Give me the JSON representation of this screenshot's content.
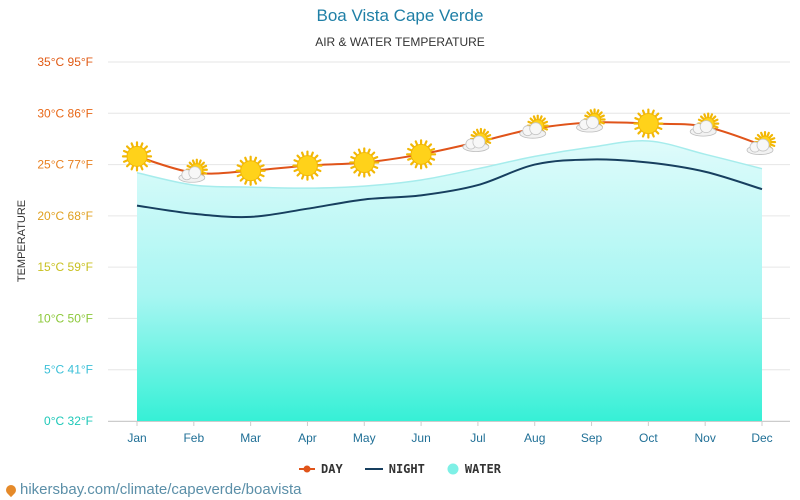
{
  "chart_data": {
    "type": "line",
    "title": "Boa Vista Cape Verde",
    "subtitle": "AIR & WATER TEMPERATURE",
    "ylabel": "TEMPERATURE",
    "xlabel": "",
    "categories": [
      "Jan",
      "Feb",
      "Mar",
      "Apr",
      "May",
      "Jun",
      "Jul",
      "Aug",
      "Sep",
      "Oct",
      "Nov",
      "Dec"
    ],
    "ylim": [
      0,
      35
    ],
    "y_ticks": [
      {
        "value": 0,
        "label": "0°C 32°F",
        "color": "#1ec8b8"
      },
      {
        "value": 5,
        "label": "5°C 41°F",
        "color": "#3cc0d8"
      },
      {
        "value": 10,
        "label": "10°C 50°F",
        "color": "#8cc83a"
      },
      {
        "value": 15,
        "label": "15°C 59°F",
        "color": "#c8c020"
      },
      {
        "value": 20,
        "label": "20°C 68°F",
        "color": "#e0a020"
      },
      {
        "value": 25,
        "label": "25°C 77°F",
        "color": "#e88020"
      },
      {
        "value": 30,
        "label": "30°C 86°F",
        "color": "#e86818"
      },
      {
        "value": 35,
        "label": "35°C 95°F",
        "color": "#e05a14"
      }
    ],
    "series": [
      {
        "name": "DAY",
        "type": "line",
        "color": "#e0541a",
        "values": [
          25.8,
          24.2,
          24.4,
          24.9,
          25.2,
          26.0,
          27.2,
          28.5,
          29.1,
          29.0,
          28.7,
          26.9
        ]
      },
      {
        "name": "NIGHT",
        "type": "line",
        "color": "#173f5f",
        "values": [
          21.0,
          20.2,
          19.9,
          20.7,
          21.6,
          22.0,
          23.0,
          25.0,
          25.5,
          25.2,
          24.3,
          22.6
        ]
      },
      {
        "name": "WATER",
        "type": "area",
        "color": "#7ef0e6",
        "values": [
          24.2,
          23.0,
          22.8,
          22.7,
          22.9,
          23.5,
          24.6,
          25.8,
          26.7,
          27.3,
          26.0,
          24.6
        ]
      }
    ],
    "day_icons": [
      "sun",
      "partly-cloudy",
      "sun",
      "sun",
      "sun",
      "sun",
      "partly-cloudy",
      "partly-cloudy",
      "partly-cloudy",
      "sun",
      "partly-cloudy",
      "partly-cloudy"
    ],
    "grid": true,
    "legend_position": "bottom-center"
  },
  "source": "hikersbay.com/climate/capeverde/boavista"
}
